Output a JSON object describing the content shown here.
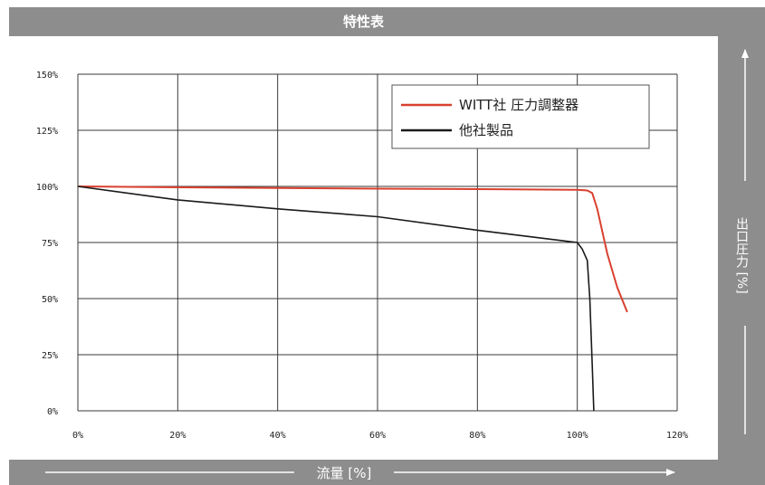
{
  "chart_data": {
    "type": "line",
    "title": "特性表",
    "xlabel": "流量 [%]",
    "ylabel": "出口圧力 [%]",
    "xlim": [
      0,
      120
    ],
    "ylim": [
      0,
      150
    ],
    "x_ticks": [
      "0%",
      "20%",
      "40%",
      "60%",
      "80%",
      "100%",
      "120%"
    ],
    "y_ticks": [
      "0%",
      "25%",
      "50%",
      "75%",
      "100%",
      "125%",
      "150%"
    ],
    "grid": true,
    "legend_position": "top-right",
    "series": [
      {
        "name": "WITT社 圧力調整器",
        "color": "#d9402e",
        "x": [
          0,
          20,
          40,
          60,
          80,
          100,
          102,
          103,
          104,
          106,
          108,
          110
        ],
        "y": [
          100,
          99.6,
          99.3,
          99,
          98.8,
          98.5,
          98.2,
          97,
          90,
          70,
          55,
          44
        ]
      },
      {
        "name": "他社製品",
        "color": "#1a1a1a",
        "x": [
          0,
          20,
          40,
          60,
          80,
          100,
          101,
          102,
          102.5,
          103,
          103.3
        ],
        "y": [
          100,
          94,
          90,
          86.5,
          80.5,
          75,
          72,
          67,
          50,
          20,
          0
        ]
      }
    ]
  }
}
